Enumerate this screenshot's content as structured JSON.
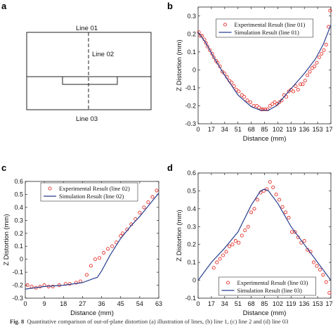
{
  "panels": {
    "a": {
      "letter": "a",
      "lines": [
        "Line 01",
        "Line 02",
        "Line 03"
      ]
    }
  },
  "caption": {
    "label": "Fig. 8",
    "text": "Quantitative comparison of out-of-plane distortion (a) illustration of lines, (b) line 1, (c) line 2 and (d) line 03"
  },
  "colors": {
    "experimental": "#e4312b",
    "simulation": "#2b3f8f"
  },
  "chart_data": [
    {
      "panel": "b",
      "type": "line",
      "xlabel": "Distance (mm)",
      "ylabel": "Z Distortion (mm)",
      "xlim": [
        0,
        170
      ],
      "ylim": [
        -0.3,
        0.35
      ],
      "xticks": [
        0,
        17,
        34,
        51,
        68,
        85,
        102,
        119,
        136,
        153,
        170
      ],
      "yticks": [
        -0.3,
        -0.2,
        -0.1,
        0,
        0.1,
        0.2,
        0.3
      ],
      "legend_position": "top-center",
      "series": [
        {
          "name": "Experimental Result (line 01)",
          "marker": "circle",
          "color": "#e4312b",
          "x": [
            1,
            3,
            5,
            8,
            10,
            12,
            15,
            18,
            20,
            23,
            25,
            28,
            31,
            34,
            37,
            40,
            43,
            46,
            49,
            52,
            56,
            59,
            63,
            67,
            71,
            75,
            78,
            81,
            83,
            86,
            89,
            92,
            95,
            98,
            101,
            104,
            107,
            110,
            113,
            116,
            119,
            122,
            125,
            128,
            131,
            134,
            137,
            140,
            143,
            146,
            149,
            152,
            155,
            158,
            161,
            164,
            167,
            169
          ],
          "y": [
            0.21,
            0.19,
            0.19,
            0.17,
            0.15,
            0.13,
            0.11,
            0.09,
            0.07,
            0.05,
            0.04,
            0.02,
            -0.01,
            -0.02,
            -0.04,
            -0.06,
            -0.07,
            -0.09,
            -0.11,
            -0.12,
            -0.14,
            -0.15,
            -0.17,
            -0.18,
            -0.2,
            -0.2,
            -0.21,
            -0.22,
            -0.22,
            -0.22,
            -0.22,
            -0.2,
            -0.19,
            -0.18,
            -0.19,
            -0.18,
            -0.17,
            -0.14,
            -0.15,
            -0.12,
            -0.11,
            -0.12,
            -0.09,
            -0.11,
            -0.08,
            -0.08,
            -0.06,
            -0.03,
            -0.01,
            0.01,
            0.02,
            0.04,
            0.07,
            0.09,
            0.11,
            0.14,
            0.24,
            0.33
          ]
        },
        {
          "name": "Simulation Result (line 01)",
          "marker": "line",
          "color": "#2b3f8f",
          "x": [
            0,
            10,
            20,
            34,
            51,
            68,
            80,
            90,
            100,
            110,
            120,
            136,
            150,
            160,
            170
          ],
          "y": [
            0.21,
            0.15,
            0.07,
            -0.03,
            -0.14,
            -0.205,
            -0.225,
            -0.225,
            -0.2,
            -0.15,
            -0.1,
            -0.02,
            0.06,
            0.14,
            0.25
          ]
        }
      ]
    },
    {
      "panel": "c",
      "type": "line",
      "xlabel": "Distance (mm)",
      "ylabel": "Z Distortion (mm)",
      "xlim": [
        0,
        63
      ],
      "ylim": [
        -0.3,
        0.6
      ],
      "xticks": [
        0,
        9,
        18,
        27,
        36,
        45,
        54,
        63
      ],
      "yticks": [
        -0.3,
        -0.2,
        -0.1,
        0,
        0.1,
        0.2,
        0.3,
        0.4,
        0.5,
        0.6
      ],
      "legend_position": "top-left",
      "series": [
        {
          "name": "Experimental Result (line 02)",
          "marker": "circle",
          "color": "#e4312b",
          "x": [
            1,
            3,
            5,
            7,
            9,
            11,
            13,
            16,
            19,
            21,
            24,
            26,
            29,
            31,
            33,
            35,
            37,
            39,
            41,
            43,
            45,
            46,
            48,
            50,
            52,
            54,
            56,
            58,
            60,
            62
          ],
          "y": [
            -0.2,
            -0.21,
            -0.22,
            -0.21,
            -0.2,
            -0.21,
            -0.21,
            -0.2,
            -0.19,
            -0.19,
            -0.18,
            -0.17,
            -0.12,
            -0.05,
            0,
            0.01,
            0.05,
            0.08,
            0.1,
            0.13,
            0.18,
            0.2,
            0.23,
            0.27,
            0.31,
            0.36,
            0.4,
            0.44,
            0.48,
            0.53
          ]
        },
        {
          "name": "Simulation Result (line 02)",
          "marker": "line",
          "color": "#2b3f8f",
          "x": [
            0,
            9,
            18,
            27,
            32,
            34,
            36,
            40,
            45,
            50,
            54,
            58,
            63
          ],
          "y": [
            -0.23,
            -0.21,
            -0.2,
            -0.18,
            -0.15,
            -0.14,
            -0.09,
            0.03,
            0.16,
            0.26,
            0.33,
            0.41,
            0.51
          ]
        }
      ]
    },
    {
      "panel": "d",
      "type": "line",
      "xlabel": "Distance (mm)",
      "ylabel": "Z Distortion (mm)",
      "xlim": [
        0,
        170
      ],
      "ylim": [
        -0.1,
        0.6
      ],
      "xticks": [
        0,
        17,
        34,
        51,
        68,
        85,
        102,
        119,
        136,
        153,
        170
      ],
      "yticks": [
        -0.1,
        0,
        0.1,
        0.2,
        0.3,
        0.4,
        0.5,
        0.6
      ],
      "legend_position": "bottom-center",
      "series": [
        {
          "name": "Experimental Result (line 03)",
          "marker": "circle",
          "color": "#e4312b",
          "x": [
            20,
            24,
            28,
            32,
            36,
            40,
            44,
            48,
            52,
            56,
            60,
            64,
            68,
            72,
            76,
            80,
            84,
            88,
            92,
            96,
            100,
            104,
            108,
            112,
            116,
            120,
            124,
            128,
            132,
            136,
            140,
            144,
            148,
            152,
            156,
            160,
            164,
            168
          ],
          "y": [
            0.07,
            0.1,
            0.12,
            0.14,
            0.16,
            0.19,
            0.2,
            0.22,
            0.21,
            0.25,
            0.28,
            0.3,
            0.38,
            0.4,
            0.45,
            0.49,
            0.5,
            0.51,
            0.55,
            0.52,
            0.48,
            0.45,
            0.41,
            0.38,
            0.35,
            0.27,
            0.27,
            0.24,
            0.21,
            0.22,
            0.17,
            0.16,
            0.1,
            0.08,
            0.06,
            0.03,
            -0.01,
            -0.07
          ]
        },
        {
          "name": "Simulation Result (line 03)",
          "marker": "line",
          "color": "#2b3f8f",
          "x": [
            0,
            17,
            34,
            51,
            68,
            80,
            85,
            90,
            102,
            119,
            136,
            153,
            170
          ],
          "y": [
            0,
            0.1,
            0.18,
            0.27,
            0.42,
            0.5,
            0.51,
            0.5,
            0.43,
            0.3,
            0.2,
            0.1,
            0.0
          ]
        }
      ]
    }
  ]
}
